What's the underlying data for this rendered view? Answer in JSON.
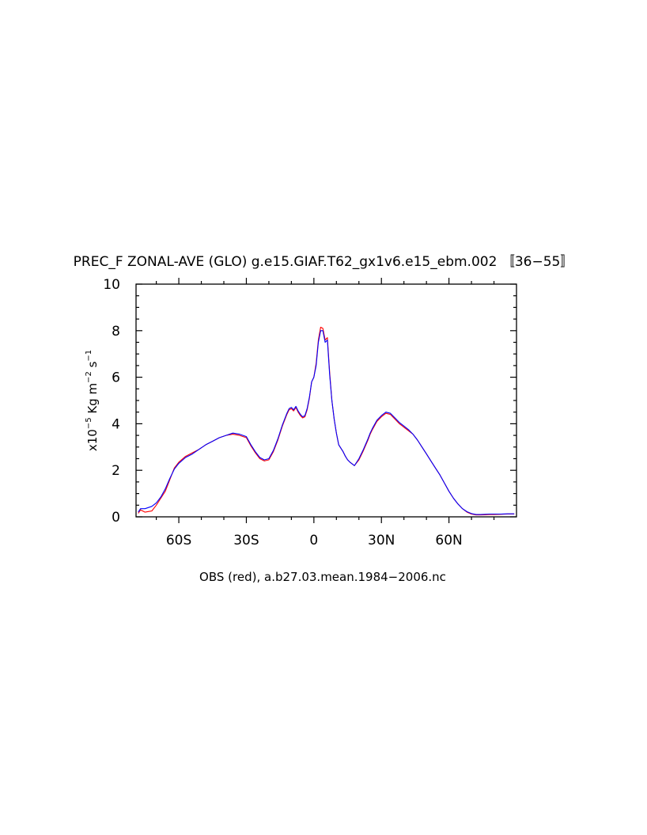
{
  "chart_data": {
    "type": "line",
    "title": "PREC_F ZONAL-AVE (GLO) g.e15.GIAF.T62_gx1v6.e15_ebm.002 〚36−55〛",
    "xlabel": "OBS (red), a.b27.03.mean.1984−2006.nc",
    "ylabel": {
      "prefix": "x10",
      "exp": "−5",
      "unit1": " Kg m",
      "unit1_exp": "−2",
      "unit2": " s",
      "unit2_exp": "−1"
    },
    "xlim": [
      -79,
      90
    ],
    "ylim": [
      0,
      10
    ],
    "grid": false,
    "x_ticks": [
      {
        "value": -60,
        "label": "60S"
      },
      {
        "value": -30,
        "label": "30S"
      },
      {
        "value": 0,
        "label": "0"
      },
      {
        "value": 30,
        "label": "30N"
      },
      {
        "value": 60,
        "label": "60N"
      }
    ],
    "y_ticks": [
      {
        "value": 0,
        "label": "0"
      },
      {
        "value": 2,
        "label": "2"
      },
      {
        "value": 4,
        "label": "4"
      },
      {
        "value": 6,
        "label": "6"
      },
      {
        "value": 8,
        "label": "8"
      },
      {
        "value": 10,
        "label": "10"
      }
    ],
    "series": [
      {
        "color": "#ff0000",
        "x": [
          -78,
          -77,
          -75,
          -72,
          -70,
          -68,
          -66,
          -64,
          -62,
          -60,
          -57,
          -54,
          -51,
          -48,
          -45,
          -42,
          -39,
          -36,
          -33,
          -30,
          -28,
          -26,
          -24,
          -22,
          -20,
          -18,
          -16,
          -14,
          -12,
          -11,
          -10,
          -9,
          -8,
          -7,
          -6,
          -5,
          -4,
          -3,
          -2,
          -1,
          0,
          1,
          2,
          3,
          4,
          5,
          6,
          7,
          8,
          9,
          10,
          11,
          12,
          13,
          14,
          15,
          16,
          18,
          20,
          22,
          24,
          25,
          26,
          28,
          30,
          32,
          34,
          36,
          38,
          40,
          42,
          44,
          46,
          48,
          50,
          52,
          54,
          56,
          58,
          60,
          62,
          64,
          66,
          68,
          70,
          72,
          74,
          76,
          78,
          80,
          83,
          86,
          89
        ],
        "y": [
          0.15,
          0.3,
          0.2,
          0.25,
          0.5,
          0.8,
          1.1,
          1.6,
          2.1,
          2.35,
          2.6,
          2.75,
          2.9,
          3.1,
          3.25,
          3.4,
          3.5,
          3.55,
          3.5,
          3.4,
          3.05,
          2.75,
          2.5,
          2.4,
          2.45,
          2.8,
          3.3,
          3.9,
          4.4,
          4.6,
          4.65,
          4.55,
          4.7,
          4.5,
          4.35,
          4.25,
          4.3,
          4.6,
          5.1,
          5.8,
          6.0,
          6.6,
          7.6,
          8.15,
          8.1,
          7.6,
          7.7,
          6.2,
          5.0,
          4.2,
          3.6,
          3.1,
          2.95,
          2.8,
          2.6,
          2.45,
          2.35,
          2.2,
          2.45,
          2.85,
          3.3,
          3.55,
          3.75,
          4.1,
          4.3,
          4.45,
          4.4,
          4.2,
          4.0,
          3.85,
          3.7,
          3.55,
          3.3,
          3.0,
          2.7,
          2.4,
          2.1,
          1.8,
          1.45,
          1.1,
          0.8,
          0.55,
          0.35,
          0.2,
          0.12,
          0.08,
          0.08,
          0.09,
          0.1,
          0.1,
          0.11,
          0.12,
          0.12
        ]
      },
      {
        "color": "#0000ff",
        "x": [
          -78,
          -77,
          -75,
          -72,
          -70,
          -68,
          -66,
          -64,
          -62,
          -60,
          -57,
          -54,
          -51,
          -48,
          -45,
          -42,
          -39,
          -36,
          -33,
          -30,
          -28,
          -26,
          -24,
          -22,
          -20,
          -18,
          -16,
          -14,
          -12,
          -11,
          -10,
          -9,
          -8,
          -7,
          -6,
          -5,
          -4,
          -3,
          -2,
          -1,
          0,
          1,
          2,
          3,
          4,
          5,
          6,
          7,
          8,
          9,
          10,
          11,
          12,
          13,
          14,
          15,
          16,
          18,
          20,
          22,
          24,
          25,
          26,
          28,
          30,
          32,
          34,
          36,
          38,
          40,
          42,
          44,
          46,
          48,
          50,
          52,
          54,
          56,
          58,
          60,
          62,
          64,
          66,
          68,
          70,
          72,
          74,
          76,
          78,
          80,
          83,
          86,
          89
        ],
        "y": [
          0.2,
          0.35,
          0.35,
          0.45,
          0.6,
          0.85,
          1.2,
          1.65,
          2.05,
          2.3,
          2.55,
          2.7,
          2.9,
          3.1,
          3.25,
          3.4,
          3.5,
          3.6,
          3.55,
          3.45,
          3.1,
          2.8,
          2.55,
          2.45,
          2.5,
          2.85,
          3.35,
          3.95,
          4.45,
          4.65,
          4.7,
          4.6,
          4.75,
          4.55,
          4.4,
          4.3,
          4.35,
          4.65,
          5.15,
          5.8,
          6.0,
          6.5,
          7.5,
          8.0,
          8.0,
          7.5,
          7.6,
          6.1,
          5.0,
          4.2,
          3.6,
          3.1,
          2.95,
          2.8,
          2.6,
          2.45,
          2.35,
          2.2,
          2.5,
          2.9,
          3.35,
          3.6,
          3.8,
          4.15,
          4.35,
          4.5,
          4.45,
          4.25,
          4.05,
          3.9,
          3.75,
          3.55,
          3.3,
          3.0,
          2.7,
          2.4,
          2.1,
          1.8,
          1.45,
          1.1,
          0.8,
          0.55,
          0.35,
          0.22,
          0.14,
          0.1,
          0.1,
          0.11,
          0.12,
          0.12,
          0.12,
          0.13,
          0.13
        ]
      }
    ]
  }
}
